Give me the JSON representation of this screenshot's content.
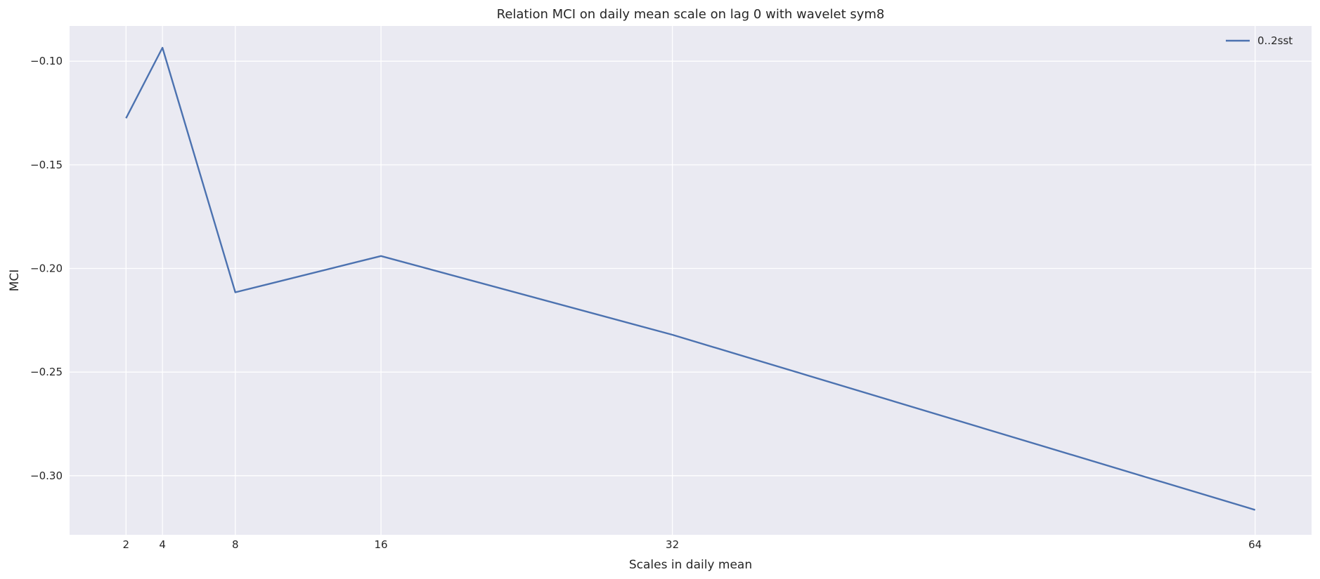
{
  "chart_data": {
    "type": "line",
    "title": "Relation MCI on daily mean scale on lag 0 with wavelet sym8",
    "xlabel": "Scales in daily mean",
    "ylabel": "MCI",
    "x": [
      2,
      4,
      8,
      16,
      32,
      64
    ],
    "series": [
      {
        "name": "0..2sst",
        "values": [
          -0.1275,
          -0.0935,
          -0.2115,
          -0.194,
          -0.232,
          -0.3165
        ],
        "color": "#4c72b0"
      }
    ],
    "xticks": [
      2,
      4,
      8,
      16,
      32,
      64
    ],
    "xtick_labels": [
      "2",
      "4",
      "8",
      "16",
      "32",
      "64"
    ],
    "yticks": [
      -0.1,
      -0.15,
      -0.2,
      -0.25,
      -0.3
    ],
    "ytick_labels": [
      "−0.10",
      "−0.15",
      "−0.20",
      "−0.25",
      "−0.30"
    ],
    "xlim": [
      -1.1,
      67.1
    ],
    "ylim": [
      -0.3285,
      -0.083
    ],
    "grid": true,
    "legend_position": "top-right",
    "background_color": "#eaeaf2",
    "grid_color": "#ffffff"
  }
}
